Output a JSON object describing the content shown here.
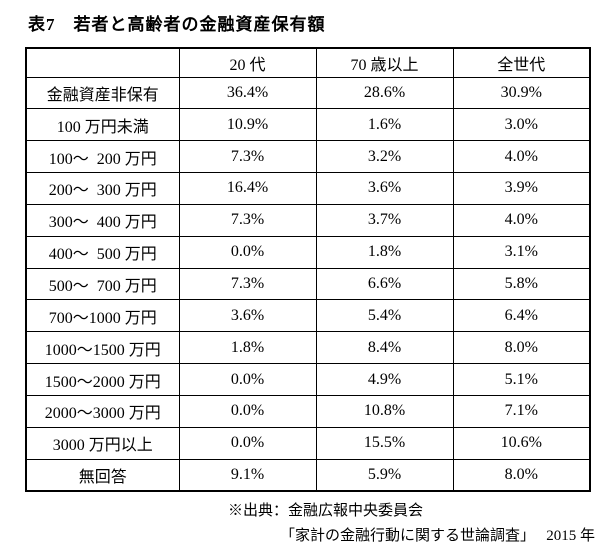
{
  "title": "表7　若者と高齢者の金融資産保有額",
  "table": {
    "columns": [
      "",
      "20 代",
      "70 歳以上",
      "全世代"
    ],
    "rows": [
      {
        "label": "金融資産非保有",
        "values": [
          "36.4%",
          "28.6%",
          "30.9%"
        ]
      },
      {
        "label": "100 万円未満",
        "values": [
          "10.9%",
          "1.6%",
          "3.0%"
        ]
      },
      {
        "label": "100～  200 万円",
        "values": [
          "7.3%",
          "3.2%",
          "4.0%"
        ]
      },
      {
        "label": "200～  300 万円",
        "values": [
          "16.4%",
          "3.6%",
          "3.9%"
        ]
      },
      {
        "label": "300～  400 万円",
        "values": [
          "7.3%",
          "3.7%",
          "4.0%"
        ]
      },
      {
        "label": "400～  500 万円",
        "values": [
          "0.0%",
          "1.8%",
          "3.1%"
        ]
      },
      {
        "label": "500～  700 万円",
        "values": [
          "7.3%",
          "6.6%",
          "5.8%"
        ]
      },
      {
        "label": "700～1000 万円",
        "values": [
          "3.6%",
          "5.4%",
          "6.4%"
        ]
      },
      {
        "label": "1000～1500 万円",
        "values": [
          "1.8%",
          "8.4%",
          "8.0%"
        ]
      },
      {
        "label": "1500～2000 万円",
        "values": [
          "0.0%",
          "4.9%",
          "5.1%"
        ]
      },
      {
        "label": "2000～3000 万円",
        "values": [
          "0.0%",
          "10.8%",
          "7.1%"
        ]
      },
      {
        "label": "3000 万円以上",
        "values": [
          "0.0%",
          "15.5%",
          "10.6%"
        ]
      },
      {
        "label": "無回答",
        "values": [
          "9.1%",
          "5.9%",
          "8.0%"
        ]
      }
    ]
  },
  "footer": {
    "line1": "※出典：金融広報中央委員会",
    "line2": "「家計の金融行動に関する世論調査」　 2015 年"
  },
  "colors": {
    "text": "#000000",
    "border": "#000000",
    "background": "#ffffff"
  }
}
